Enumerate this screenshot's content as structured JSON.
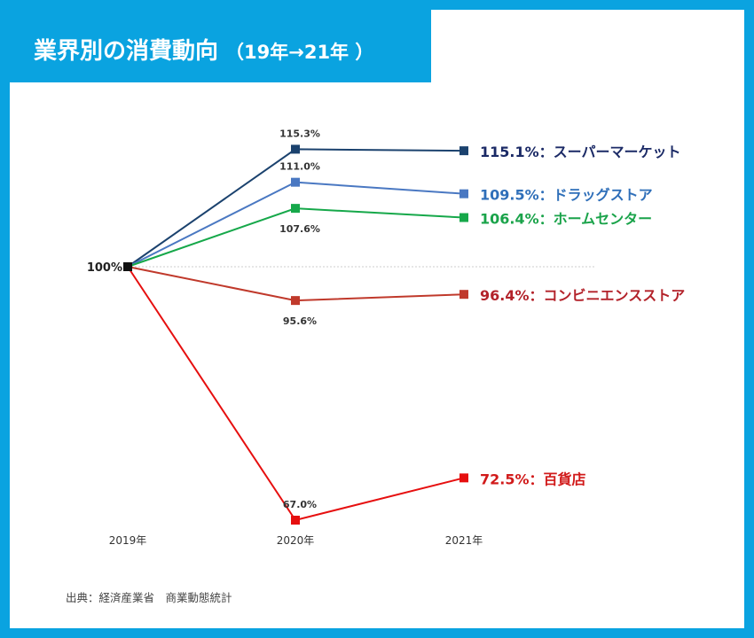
{
  "title": "業界別の消費動向",
  "subtitle": "（19年→21年 ）",
  "source": "出典：経済産業省　商業動態統計",
  "chart_data": {
    "type": "line",
    "categories": [
      "2019年",
      "2020年",
      "2021年"
    ],
    "ylim": [
      60,
      120
    ],
    "baseline": 100,
    "baseline_label": "100%",
    "grid": false,
    "legend": "right-end labels",
    "series": [
      {
        "name": "スーパーマーケット",
        "values": [
          100,
          115.3,
          115.1
        ],
        "color": "#1b426e",
        "point_label": "115.3%",
        "point_label_pos": "above",
        "end_label": "115.1%：スーパーマーケット",
        "label_color": "#1b2a66"
      },
      {
        "name": "ドラッグストア",
        "values": [
          100,
          111.0,
          109.5
        ],
        "color": "#4a78c2",
        "point_label": "111.0%",
        "point_label_pos": "above",
        "end_label": "109.5%：ドラッグストア",
        "label_color": "#2f6fb9"
      },
      {
        "name": "ホームセンター",
        "values": [
          100,
          107.6,
          106.4
        ],
        "color": "#16a84a",
        "point_label": "107.6%",
        "point_label_pos": "below",
        "end_label": "106.4%：ホームセンター",
        "label_color": "#1aa34a"
      },
      {
        "name": "コンビニエンスストア",
        "values": [
          100,
          95.6,
          96.4
        ],
        "color": "#c0392b",
        "point_label": "95.6%",
        "point_label_pos": "below",
        "end_label": "96.4%：コンビニエンスストア",
        "label_color": "#b3222a"
      },
      {
        "name": "百貨店",
        "values": [
          100,
          67.0,
          72.5
        ],
        "color": "#e60f0f",
        "point_label": "67.0%",
        "point_label_pos": "above",
        "end_label": "72.5%：百貨店",
        "label_color": "#d11a1a"
      }
    ]
  }
}
